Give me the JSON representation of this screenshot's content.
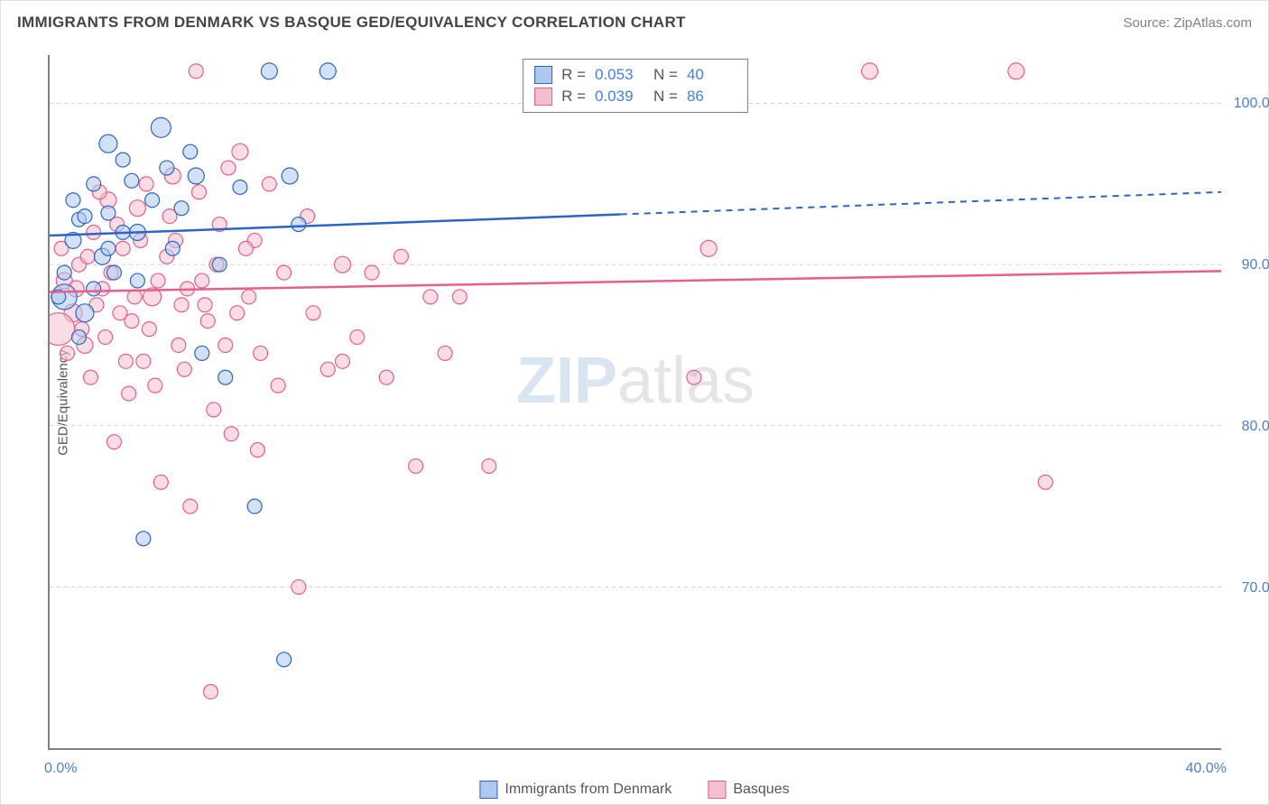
{
  "title": "IMMIGRANTS FROM DENMARK VS BASQUE GED/EQUIVALENCY CORRELATION CHART",
  "source": "Source: ZipAtlas.com",
  "watermark_main": "ZIP",
  "watermark_sub": "atlas",
  "yaxis": {
    "label": "GED/Equivalency",
    "ticks": [
      {
        "value": 70.0,
        "label": "70.0%"
      },
      {
        "value": 80.0,
        "label": "80.0%"
      },
      {
        "value": 90.0,
        "label": "90.0%"
      },
      {
        "value": 100.0,
        "label": "100.0%"
      }
    ],
    "min": 60.0,
    "max": 103.0
  },
  "xaxis": {
    "ticks_at": [
      0,
      5,
      10,
      15,
      20,
      25,
      30,
      35,
      40
    ],
    "min_label": "0.0%",
    "max_label": "40.0%",
    "min": 0.0,
    "max": 40.0
  },
  "series": [
    {
      "name": "Immigrants from Denmark",
      "fill": "#afc9ee",
      "stroke": "#2a65c7",
      "fill_opacity": 0.55,
      "r_value": "0.053",
      "n_value": "40",
      "trend": {
        "y_at_xmin": 91.8,
        "y_at_xmax": 94.5,
        "solid_until_x": 19.5
      },
      "points": [
        {
          "x": 0.8,
          "y": 91.5,
          "r": 9
        },
        {
          "x": 0.5,
          "y": 88.0,
          "r": 14
        },
        {
          "x": 1.0,
          "y": 92.8,
          "r": 8
        },
        {
          "x": 1.2,
          "y": 87.0,
          "r": 10
        },
        {
          "x": 1.5,
          "y": 95.0,
          "r": 8
        },
        {
          "x": 1.8,
          "y": 90.5,
          "r": 9
        },
        {
          "x": 2.0,
          "y": 93.2,
          "r": 8
        },
        {
          "x": 2.2,
          "y": 89.5,
          "r": 8
        },
        {
          "x": 2.0,
          "y": 97.5,
          "r": 10
        },
        {
          "x": 2.8,
          "y": 95.2,
          "r": 8
        },
        {
          "x": 3.0,
          "y": 92.0,
          "r": 9
        },
        {
          "x": 3.2,
          "y": 73.0,
          "r": 8
        },
        {
          "x": 3.5,
          "y": 94.0,
          "r": 8
        },
        {
          "x": 3.8,
          "y": 98.5,
          "r": 11
        },
        {
          "x": 4.0,
          "y": 96.0,
          "r": 8
        },
        {
          "x": 4.2,
          "y": 91.0,
          "r": 8
        },
        {
          "x": 4.5,
          "y": 93.5,
          "r": 8
        },
        {
          "x": 5.0,
          "y": 95.5,
          "r": 9
        },
        {
          "x": 5.2,
          "y": 84.5,
          "r": 8
        },
        {
          "x": 5.8,
          "y": 90.0,
          "r": 8
        },
        {
          "x": 6.0,
          "y": 83.0,
          "r": 8
        },
        {
          "x": 6.5,
          "y": 94.8,
          "r": 8
        },
        {
          "x": 7.0,
          "y": 75.0,
          "r": 8
        },
        {
          "x": 7.5,
          "y": 102.0,
          "r": 9
        },
        {
          "x": 8.2,
          "y": 95.5,
          "r": 9
        },
        {
          "x": 8.5,
          "y": 92.5,
          "r": 8
        },
        {
          "x": 8.0,
          "y": 65.5,
          "r": 8
        },
        {
          "x": 9.5,
          "y": 102.0,
          "r": 9
        },
        {
          "x": 0.3,
          "y": 88.0,
          "r": 8
        },
        {
          "x": 0.5,
          "y": 89.5,
          "r": 8
        },
        {
          "x": 1.0,
          "y": 85.5,
          "r": 8
        },
        {
          "x": 2.5,
          "y": 92.0,
          "r": 8
        },
        {
          "x": 3.0,
          "y": 89.0,
          "r": 8
        },
        {
          "x": 2.5,
          "y": 96.5,
          "r": 8
        },
        {
          "x": 4.8,
          "y": 97.0,
          "r": 8
        },
        {
          "x": 0.8,
          "y": 94.0,
          "r": 8
        },
        {
          "x": 1.5,
          "y": 88.5,
          "r": 8
        },
        {
          "x": 19.5,
          "y": 102.0,
          "r": 9
        },
        {
          "x": 2.0,
          "y": 91.0,
          "r": 8
        },
        {
          "x": 1.2,
          "y": 93.0,
          "r": 8
        }
      ]
    },
    {
      "name": "Basques",
      "fill": "#f6bfd0",
      "stroke": "#e85e8a",
      "fill_opacity": 0.55,
      "r_value": "0.039",
      "n_value": "86",
      "trend": {
        "y_at_xmin": 88.3,
        "y_at_xmax": 89.6,
        "solid_until_x": 40.0
      },
      "points": [
        {
          "x": 0.5,
          "y": 89.0,
          "r": 9
        },
        {
          "x": 0.8,
          "y": 87.0,
          "r": 10
        },
        {
          "x": 0.3,
          "y": 86.0,
          "r": 18
        },
        {
          "x": 1.0,
          "y": 90.0,
          "r": 8
        },
        {
          "x": 1.2,
          "y": 85.0,
          "r": 9
        },
        {
          "x": 1.5,
          "y": 92.0,
          "r": 8
        },
        {
          "x": 1.8,
          "y": 88.5,
          "r": 8
        },
        {
          "x": 2.0,
          "y": 94.0,
          "r": 9
        },
        {
          "x": 2.2,
          "y": 79.0,
          "r": 8
        },
        {
          "x": 2.5,
          "y": 91.0,
          "r": 8
        },
        {
          "x": 2.8,
          "y": 86.5,
          "r": 8
        },
        {
          "x": 3.0,
          "y": 93.5,
          "r": 9
        },
        {
          "x": 3.2,
          "y": 84.0,
          "r": 8
        },
        {
          "x": 3.5,
          "y": 88.0,
          "r": 10
        },
        {
          "x": 3.8,
          "y": 76.5,
          "r": 8
        },
        {
          "x": 4.0,
          "y": 90.5,
          "r": 8
        },
        {
          "x": 4.2,
          "y": 95.5,
          "r": 9
        },
        {
          "x": 4.5,
          "y": 87.5,
          "r": 8
        },
        {
          "x": 4.8,
          "y": 75.0,
          "r": 8
        },
        {
          "x": 5.0,
          "y": 102.0,
          "r": 8
        },
        {
          "x": 5.2,
          "y": 89.0,
          "r": 8
        },
        {
          "x": 5.5,
          "y": 63.5,
          "r": 8
        },
        {
          "x": 5.8,
          "y": 92.5,
          "r": 8
        },
        {
          "x": 6.0,
          "y": 85.0,
          "r": 8
        },
        {
          "x": 6.2,
          "y": 79.5,
          "r": 8
        },
        {
          "x": 6.5,
          "y": 97.0,
          "r": 9
        },
        {
          "x": 6.8,
          "y": 88.0,
          "r": 8
        },
        {
          "x": 7.0,
          "y": 91.5,
          "r": 8
        },
        {
          "x": 7.2,
          "y": 84.5,
          "r": 8
        },
        {
          "x": 7.5,
          "y": 95.0,
          "r": 8
        },
        {
          "x": 7.8,
          "y": 82.5,
          "r": 8
        },
        {
          "x": 8.0,
          "y": 89.5,
          "r": 8
        },
        {
          "x": 8.5,
          "y": 70.0,
          "r": 8
        },
        {
          "x": 8.8,
          "y": 93.0,
          "r": 8
        },
        {
          "x": 9.0,
          "y": 87.0,
          "r": 8
        },
        {
          "x": 9.5,
          "y": 83.5,
          "r": 8
        },
        {
          "x": 10.0,
          "y": 90.0,
          "r": 9
        },
        {
          "x": 10.5,
          "y": 85.5,
          "r": 8
        },
        {
          "x": 11.0,
          "y": 89.5,
          "r": 8
        },
        {
          "x": 11.5,
          "y": 83.0,
          "r": 8
        },
        {
          "x": 12.0,
          "y": 90.5,
          "r": 8
        },
        {
          "x": 12.5,
          "y": 77.5,
          "r": 8
        },
        {
          "x": 13.0,
          "y": 88.0,
          "r": 8
        },
        {
          "x": 13.5,
          "y": 84.5,
          "r": 8
        },
        {
          "x": 14.0,
          "y": 88.0,
          "r": 8
        },
        {
          "x": 15.0,
          "y": 77.5,
          "r": 8
        },
        {
          "x": 0.4,
          "y": 91.0,
          "r": 8
        },
        {
          "x": 0.6,
          "y": 84.5,
          "r": 8
        },
        {
          "x": 0.9,
          "y": 88.5,
          "r": 9
        },
        {
          "x": 1.1,
          "y": 86.0,
          "r": 8
        },
        {
          "x": 1.3,
          "y": 90.5,
          "r": 8
        },
        {
          "x": 1.6,
          "y": 87.5,
          "r": 8
        },
        {
          "x": 1.9,
          "y": 85.5,
          "r": 8
        },
        {
          "x": 2.1,
          "y": 89.5,
          "r": 8
        },
        {
          "x": 2.3,
          "y": 92.5,
          "r": 8
        },
        {
          "x": 2.6,
          "y": 84.0,
          "r": 8
        },
        {
          "x": 2.9,
          "y": 88.0,
          "r": 8
        },
        {
          "x": 3.1,
          "y": 91.5,
          "r": 8
        },
        {
          "x": 3.4,
          "y": 86.0,
          "r": 8
        },
        {
          "x": 3.7,
          "y": 89.0,
          "r": 8
        },
        {
          "x": 4.1,
          "y": 93.0,
          "r": 8
        },
        {
          "x": 4.4,
          "y": 85.0,
          "r": 8
        },
        {
          "x": 4.7,
          "y": 88.5,
          "r": 8
        },
        {
          "x": 5.1,
          "y": 94.5,
          "r": 8
        },
        {
          "x": 5.4,
          "y": 86.5,
          "r": 8
        },
        {
          "x": 5.7,
          "y": 90.0,
          "r": 8
        },
        {
          "x": 6.1,
          "y": 96.0,
          "r": 8
        },
        {
          "x": 6.4,
          "y": 87.0,
          "r": 8
        },
        {
          "x": 6.7,
          "y": 91.0,
          "r": 8
        },
        {
          "x": 7.1,
          "y": 78.5,
          "r": 8
        },
        {
          "x": 10.0,
          "y": 84.0,
          "r": 8
        },
        {
          "x": 22.5,
          "y": 91.0,
          "r": 9
        },
        {
          "x": 22.0,
          "y": 83.0,
          "r": 8
        },
        {
          "x": 28.0,
          "y": 102.0,
          "r": 9
        },
        {
          "x": 33.0,
          "y": 102.0,
          "r": 9
        },
        {
          "x": 34.0,
          "y": 76.5,
          "r": 8
        },
        {
          "x": 1.4,
          "y": 83.0,
          "r": 8
        },
        {
          "x": 1.7,
          "y": 94.5,
          "r": 8
        },
        {
          "x": 2.4,
          "y": 87.0,
          "r": 8
        },
        {
          "x": 2.7,
          "y": 82.0,
          "r": 8
        },
        {
          "x": 3.3,
          "y": 95.0,
          "r": 8
        },
        {
          "x": 3.6,
          "y": 82.5,
          "r": 8
        },
        {
          "x": 4.3,
          "y": 91.5,
          "r": 8
        },
        {
          "x": 4.6,
          "y": 83.5,
          "r": 8
        },
        {
          "x": 5.3,
          "y": 87.5,
          "r": 8
        },
        {
          "x": 5.6,
          "y": 81.0,
          "r": 8
        }
      ]
    }
  ],
  "legend_labels": {
    "r": "R =",
    "n": "N ="
  },
  "colors": {
    "tick_text": "#4a7fd8",
    "axis": "#808080",
    "grid": "#d0d0d0"
  }
}
